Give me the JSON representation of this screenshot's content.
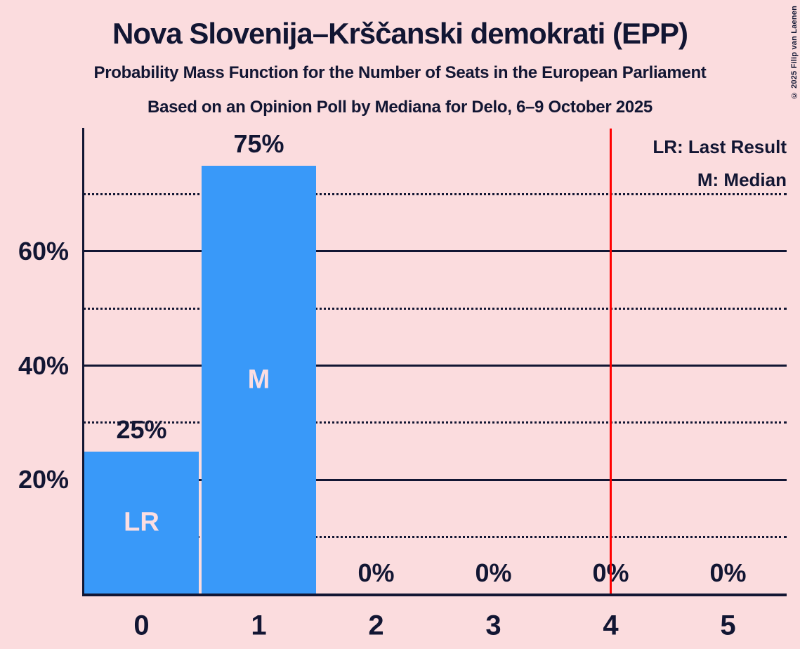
{
  "chart_data": {
    "type": "bar",
    "title": "Nova Slovenija–Krščanski demokrati (EPP)",
    "subtitle1": "Probability Mass Function for the Number of Seats in the European Parliament",
    "subtitle2": "Based on an Opinion Poll by Mediana for Delo, 6–9 October 2025",
    "copyright": "© 2025 Filip van Laenen",
    "legend": [
      "LR: Last Result",
      "M: Median"
    ],
    "legend_notes": {
      "LR": "Last Result",
      "M": "Median"
    },
    "categories": [
      "0",
      "1",
      "2",
      "3",
      "4",
      "5"
    ],
    "values": [
      25,
      75,
      0,
      0,
      0,
      0
    ],
    "value_labels": [
      "25%",
      "75%",
      "0%",
      "0%",
      "0%",
      "0%"
    ],
    "bar_annotations": [
      "LR",
      "M",
      "",
      "",
      "",
      ""
    ],
    "xlabel": "",
    "ylabel": "",
    "y_axis": {
      "tick_labels": [
        "20%",
        "40%",
        "60%"
      ],
      "solid_gridlines_pct": [
        20,
        40,
        60
      ],
      "dotted_gridlines_pct": [
        10,
        30,
        50,
        70
      ],
      "ylim": [
        0,
        81.6
      ]
    },
    "red_vertical_line_x": 4.5,
    "grid": "on",
    "legend_position": "top-right",
    "colors": {
      "background": "#fbdcde",
      "bar": "#3999f9",
      "text": "#121633",
      "bar_label": "#fbdee2",
      "red_line": "#ff0000"
    }
  }
}
